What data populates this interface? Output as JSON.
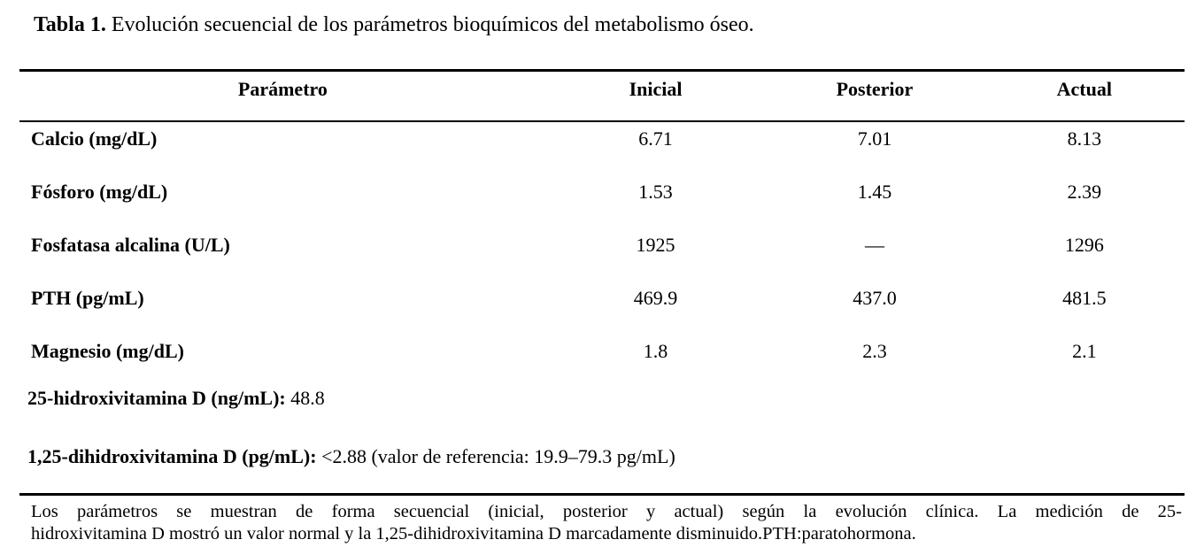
{
  "title": {
    "label": "Tabla 1.",
    "text": " Evolución secuencial de los parámetros bioquímicos del metabolismo óseo."
  },
  "table": {
    "columns": [
      "Parámetro",
      "Inicial",
      "Posterior",
      "Actual"
    ],
    "rows": [
      {
        "param": "Calcio (mg/dL)",
        "inicial": "6.71",
        "posterior": "7.01",
        "actual": "8.13"
      },
      {
        "param": "Fósforo (mg/dL)",
        "inicial": "1.53",
        "posterior": "1.45",
        "actual": "2.39"
      },
      {
        "param": "Fosfatasa alcalina (U/L)",
        "inicial": "1925",
        "posterior": "—",
        "actual": "1296"
      },
      {
        "param": "PTH (pg/mL)",
        "inicial": "469.9",
        "posterior": "437.0",
        "actual": "481.5"
      },
      {
        "param": "Magnesio (mg/dL)",
        "inicial": "1.8",
        "posterior": "2.3",
        "actual": "2.1"
      }
    ],
    "extra_rows": [
      {
        "label": "25-hidroxivitamina D (ng/mL):",
        "value": " 48.8"
      },
      {
        "label": "1,25-dihidroxivitamina D (pg/mL):",
        "value": " <2.88 (valor de referencia: 19.9–79.3 pg/mL)"
      }
    ]
  },
  "footnote": {
    "line1": "Los parámetros se muestran de forma secuencial (inicial, posterior y actual) según la evolución clínica. La medición de 25-",
    "line2": "hidroxivitamina D mostró un valor normal y la 1,25-dihidroxivitamina D marcadamente disminuido.PTH:paratohormona."
  },
  "colors": {
    "text": "#000000",
    "background": "#ffffff",
    "rule": "#000000"
  }
}
